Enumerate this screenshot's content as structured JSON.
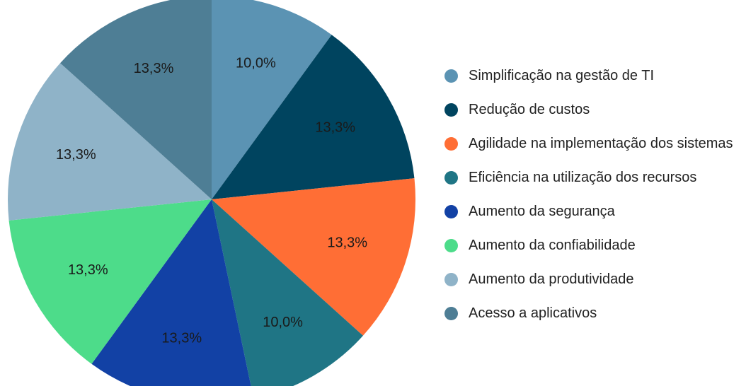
{
  "chart_data": {
    "type": "pie",
    "categories": [
      "Simplificação na gestão de TI",
      "Redução de custos",
      "Agilidade na implementação dos sistemas",
      "Eficiência na utilização dos recursos",
      "Aumento da segurança",
      "Aumento da confiabilidade",
      "Aumento da produtividade",
      "Acesso a aplicativos"
    ],
    "values": [
      10.0,
      13.3,
      13.3,
      10.0,
      13.3,
      13.3,
      13.3,
      13.3
    ],
    "value_labels": [
      "10,0%",
      "13,3%",
      "13,3%",
      "10,0%",
      "13,3%",
      "13,3%",
      "13,3%",
      "13,3%"
    ],
    "colors": [
      "#5b93b3",
      "#00445f",
      "#ff6e35",
      "#1f7585",
      "#1241a5",
      "#4ddc8a",
      "#8fb3c8",
      "#4e7e95"
    ],
    "legend": "right"
  }
}
